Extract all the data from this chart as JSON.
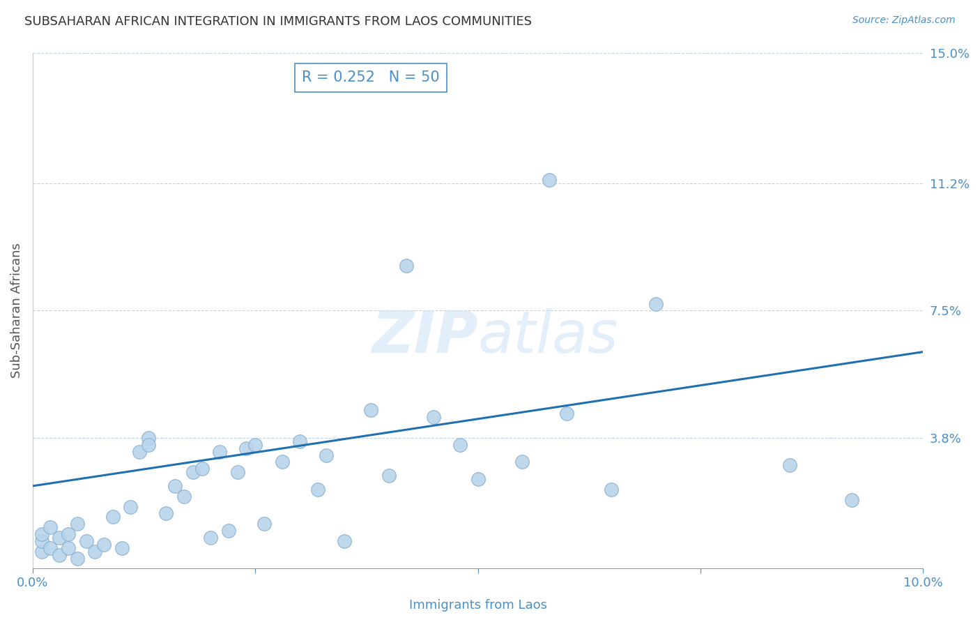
{
  "title": "SUBSAHARAN AFRICAN INTEGRATION IN IMMIGRANTS FROM LAOS COMMUNITIES",
  "source": "Source: ZipAtlas.com",
  "xlabel": "Immigrants from Laos",
  "ylabel": "Sub-Saharan Africans",
  "xlim": [
    0.0,
    0.1
  ],
  "ylim": [
    0.0,
    0.15
  ],
  "yticks": [
    0.0,
    0.038,
    0.075,
    0.112,
    0.15
  ],
  "ytick_labels": [
    "",
    "3.8%",
    "7.5%",
    "11.2%",
    "15.0%"
  ],
  "xticks": [
    0.0,
    0.025,
    0.05,
    0.075,
    0.1
  ],
  "xtick_labels": [
    "0.0%",
    "",
    "",
    "",
    "10.0%"
  ],
  "R": 0.252,
  "N": 50,
  "scatter_color": "#b8d4ea",
  "scatter_edge_color": "#85aed0",
  "line_color": "#2070b0",
  "annotation_color": "#4a90c8",
  "title_color": "#333333",
  "source_color": "#4a90c8",
  "watermark_color": "#d0e4f5",
  "line_y0": 0.024,
  "line_y1": 0.063,
  "points_x": [
    0.001,
    0.001,
    0.001,
    0.002,
    0.002,
    0.003,
    0.003,
    0.004,
    0.004,
    0.005,
    0.005,
    0.006,
    0.007,
    0.008,
    0.009,
    0.01,
    0.011,
    0.012,
    0.013,
    0.013,
    0.015,
    0.016,
    0.017,
    0.018,
    0.019,
    0.02,
    0.021,
    0.022,
    0.023,
    0.024,
    0.025,
    0.026,
    0.028,
    0.03,
    0.032,
    0.033,
    0.035,
    0.038,
    0.04,
    0.042,
    0.045,
    0.048,
    0.05,
    0.055,
    0.058,
    0.06,
    0.065,
    0.07,
    0.085,
    0.092
  ],
  "points_y": [
    0.005,
    0.008,
    0.01,
    0.006,
    0.012,
    0.004,
    0.009,
    0.006,
    0.01,
    0.003,
    0.013,
    0.008,
    0.005,
    0.007,
    0.015,
    0.006,
    0.018,
    0.034,
    0.038,
    0.036,
    0.016,
    0.024,
    0.021,
    0.028,
    0.029,
    0.009,
    0.034,
    0.011,
    0.028,
    0.035,
    0.036,
    0.013,
    0.031,
    0.037,
    0.023,
    0.033,
    0.008,
    0.046,
    0.027,
    0.088,
    0.044,
    0.036,
    0.026,
    0.031,
    0.113,
    0.045,
    0.023,
    0.077,
    0.03,
    0.02
  ]
}
